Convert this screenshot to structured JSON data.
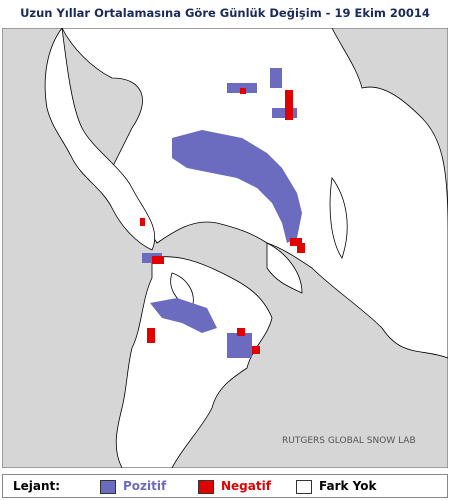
{
  "header": {
    "title": "Uzun Yıllar Ortalamasına Göre Günlük Değişim - 19 Ekim 20014"
  },
  "map": {
    "credit": "RUTGERS GLOBAL SNOW LAB"
  },
  "legend": {
    "label": "Lejant:",
    "items": [
      "Pozitif",
      "Negatif",
      "Fark Yok"
    ]
  }
}
